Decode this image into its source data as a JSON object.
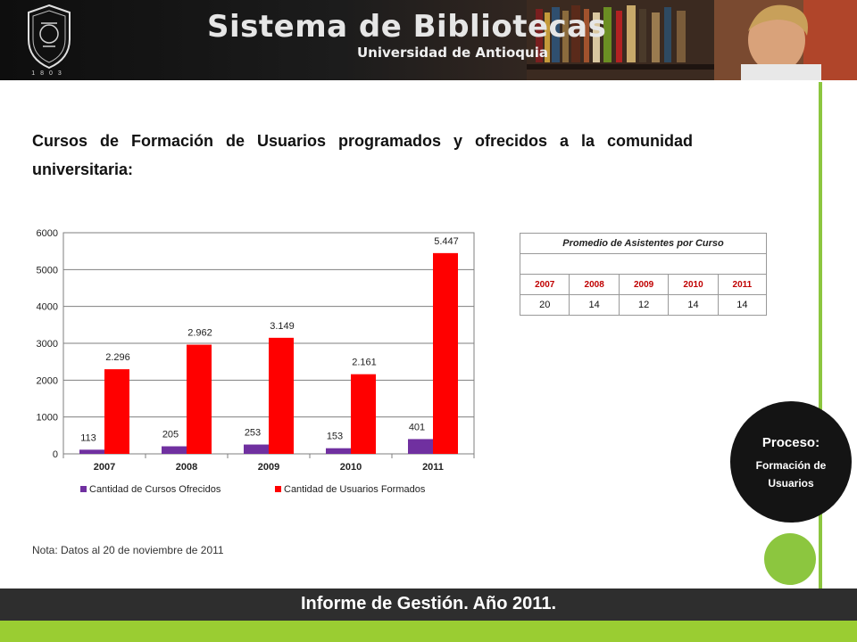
{
  "header": {
    "title": "Sistema de Bibliotecas",
    "subtitle": "Universidad de Antioquia",
    "seal_year": "1803"
  },
  "headline": "Cursos de Formación de Usuarios programados y ofrecidos a la comunidad universitaria:",
  "chart_data": {
    "type": "bar",
    "categories": [
      "2007",
      "2008",
      "2009",
      "2010",
      "2011"
    ],
    "series": [
      {
        "name": "Cantidad de Cursos Ofrecidos",
        "values": [
          113,
          205,
          253,
          153,
          401
        ],
        "labels": [
          "113",
          "205",
          "253",
          "153",
          "401"
        ],
        "color": "#7030a0"
      },
      {
        "name": "Cantidad de Usuarios Formados",
        "values": [
          2296,
          2962,
          3149,
          2161,
          5447
        ],
        "labels": [
          "2.296",
          "2.962",
          "3.149",
          "2.161",
          "5.447"
        ],
        "color": "#ff0000"
      }
    ],
    "yticks": [
      "0",
      "1000",
      "2000",
      "3000",
      "4000",
      "5000",
      "6000"
    ],
    "ylim": [
      0,
      6000
    ],
    "grid": true,
    "legend": "bottom"
  },
  "note": "Nota: Datos al 20 de noviembre de 2011",
  "table": {
    "title": "Promedio de Asistentes  por Curso",
    "years": [
      "2007",
      "2008",
      "2009",
      "2010",
      "2011"
    ],
    "values": [
      "20",
      "14",
      "12",
      "14",
      "14"
    ]
  },
  "process": {
    "label": "Proceso:",
    "name": "Formación de Usuarios"
  },
  "footer": "Informe de Gestión. Año 2011.",
  "colors": {
    "accent_green": "#8cc63f",
    "footer_dark": "#2e2e2e",
    "year_red": "#c00000"
  }
}
